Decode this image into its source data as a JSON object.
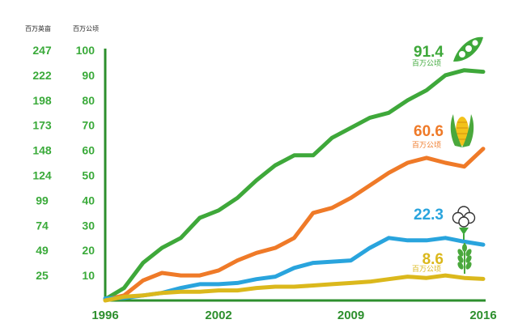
{
  "chart_data": {
    "type": "line",
    "acres_unit": "百万英亩",
    "hectares_unit": "百万公顷",
    "ylim": [
      0,
      100
    ],
    "xlim": [
      1996,
      2016
    ],
    "y_ticks": [
      10,
      20,
      30,
      40,
      50,
      60,
      70,
      80,
      90,
      100
    ],
    "y_ticks_acres": [
      "25",
      "49",
      "74",
      "99",
      "124",
      "148",
      "173",
      "198",
      "222",
      "247"
    ],
    "x_ticks": [
      "1996",
      "2002",
      "2009",
      "2016"
    ],
    "grid": false,
    "x": [
      1996,
      1997,
      1998,
      1999,
      2000,
      2001,
      2002,
      2003,
      2004,
      2005,
      2006,
      2007,
      2008,
      2009,
      2010,
      2011,
      2012,
      2013,
      2014,
      2015,
      2016
    ],
    "series": [
      {
        "icon": "soybean-pod-icon",
        "color": "#3ea83a",
        "values": [
          0.5,
          5,
          15,
          21,
          25,
          33,
          36,
          41,
          48,
          54,
          58,
          58,
          65,
          69,
          73,
          75,
          80,
          84,
          90,
          92,
          91.4
        ],
        "end_label": "91.4",
        "end_unit": "百万公顷"
      },
      {
        "icon": "corn-icon",
        "color": "#ef7a28",
        "values": [
          0.3,
          2,
          8,
          11,
          10,
          10,
          12,
          16,
          19,
          21,
          25,
          35,
          37,
          41,
          46,
          51,
          55,
          57,
          55,
          53.5,
          60.6
        ],
        "end_label": "60.6",
        "end_unit": "百万公顷"
      },
      {
        "icon": "cotton-icon",
        "color": "#29a4dd",
        "values": [
          0.8,
          1,
          2,
          3,
          5,
          6.5,
          6.5,
          7,
          8.5,
          9.5,
          13,
          15,
          15.5,
          16,
          21,
          25,
          24,
          24,
          25,
          23.5,
          22.3
        ],
        "end_label": "22.3",
        "end_unit": ""
      },
      {
        "icon": "wheat-icon",
        "color": "#dbb81c",
        "values": [
          0,
          1.5,
          2,
          3,
          3.5,
          3.5,
          4,
          4,
          5,
          5.5,
          5.5,
          6,
          6.5,
          7,
          7.5,
          8.5,
          9.5,
          9,
          10,
          9,
          8.6
        ],
        "end_label": "8.6",
        "end_unit": "百万公顷"
      }
    ]
  }
}
